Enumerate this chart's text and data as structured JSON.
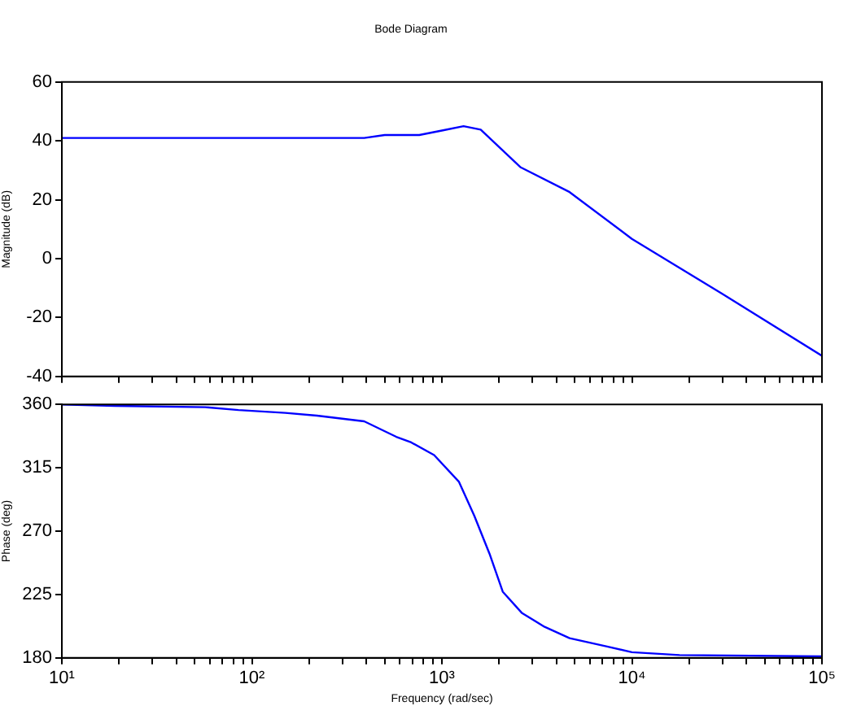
{
  "chart_data": [
    {
      "type": "line",
      "title": "Bode Diagram",
      "ylabel": "Magnitude (dB)",
      "log": "x",
      "grid": false,
      "legend": false,
      "marker": "none",
      "tick_labels": "y",
      "xlim": [
        10,
        100000
      ],
      "ylim": [
        -40,
        60
      ],
      "xticks": [
        10,
        {
          "value": 20,
          "label": null
        },
        {
          "value": 30,
          "label": null
        },
        {
          "value": 40,
          "label": null
        },
        {
          "value": 50,
          "label": null
        },
        {
          "value": 60,
          "label": null
        },
        {
          "value": 70,
          "label": null
        },
        {
          "value": 80,
          "label": null
        },
        {
          "value": 90,
          "label": null
        },
        100,
        {
          "value": 200,
          "label": null
        },
        {
          "value": 300,
          "label": null
        },
        {
          "value": 400,
          "label": null
        },
        {
          "value": 500,
          "label": null
        },
        {
          "value": 600,
          "label": null
        },
        {
          "value": 700,
          "label": null
        },
        {
          "value": 800,
          "label": null
        },
        {
          "value": 900,
          "label": null
        },
        1000,
        {
          "value": 2000,
          "label": null
        },
        {
          "value": 3000,
          "label": null
        },
        {
          "value": 4000,
          "label": null
        },
        {
          "value": 5000,
          "label": null
        },
        {
          "value": 6000,
          "label": null
        },
        {
          "value": 7000,
          "label": null
        },
        {
          "value": 8000,
          "label": null
        },
        {
          "value": 9000,
          "label": null
        },
        10000,
        {
          "value": 20000,
          "label": null
        },
        {
          "value": 30000,
          "label": null
        },
        {
          "value": 40000,
          "label": null
        },
        {
          "value": 50000,
          "label": null
        },
        {
          "value": 60000,
          "label": null
        },
        {
          "value": 70000,
          "label": null
        },
        {
          "value": 80000,
          "label": null
        },
        {
          "value": 90000,
          "label": null
        },
        100000
      ],
      "yticks": [
        -40,
        -20,
        0,
        20,
        40,
        60
      ],
      "series": [
        {
          "color": "#0000ff",
          "x": [
            10,
            100,
            390,
            500,
            760,
            1000,
            1300,
            1600,
            2600,
            4700,
            10000,
            30000,
            100000
          ],
          "values": [
            41,
            41,
            41,
            42,
            42,
            43.5,
            45,
            43.8,
            31,
            22.6,
            6.7,
            -12,
            -33
          ]
        }
      ]
    },
    {
      "type": "line",
      "ylabel": "Phase (deg)",
      "xlabel": "Frequency (rad/sec)",
      "log": "x",
      "grid": false,
      "legend": false,
      "marker": "none",
      "xlim": [
        10,
        100000
      ],
      "ylim": [
        180,
        360
      ],
      "xticks": [
        {
          "value": 10,
          "label": "10¹"
        },
        {
          "value": 20,
          "label": null
        },
        {
          "value": 30,
          "label": null
        },
        {
          "value": 40,
          "label": null
        },
        {
          "value": 50,
          "label": null
        },
        {
          "value": 60,
          "label": null
        },
        {
          "value": 70,
          "label": null
        },
        {
          "value": 80,
          "label": null
        },
        {
          "value": 90,
          "label": null
        },
        {
          "value": 100,
          "label": "10²"
        },
        {
          "value": 200,
          "label": null
        },
        {
          "value": 300,
          "label": null
        },
        {
          "value": 400,
          "label": null
        },
        {
          "value": 500,
          "label": null
        },
        {
          "value": 600,
          "label": null
        },
        {
          "value": 700,
          "label": null
        },
        {
          "value": 800,
          "label": null
        },
        {
          "value": 900,
          "label": null
        },
        {
          "value": 1000,
          "label": "10³"
        },
        {
          "value": 2000,
          "label": null
        },
        {
          "value": 3000,
          "label": null
        },
        {
          "value": 4000,
          "label": null
        },
        {
          "value": 5000,
          "label": null
        },
        {
          "value": 6000,
          "label": null
        },
        {
          "value": 7000,
          "label": null
        },
        {
          "value": 8000,
          "label": null
        },
        {
          "value": 9000,
          "label": null
        },
        {
          "value": 10000,
          "label": "10⁴"
        },
        {
          "value": 20000,
          "label": null
        },
        {
          "value": 30000,
          "label": null
        },
        {
          "value": 40000,
          "label": null
        },
        {
          "value": 50000,
          "label": null
        },
        {
          "value": 60000,
          "label": null
        },
        {
          "value": 70000,
          "label": null
        },
        {
          "value": 80000,
          "label": null
        },
        {
          "value": 90000,
          "label": null
        },
        {
          "value": 100000,
          "label": "10⁵"
        }
      ],
      "yticks": [
        180,
        225,
        270,
        315,
        360
      ],
      "series": [
        {
          "color": "#0000ff",
          "x": [
            10,
            19,
            57,
            85,
            150,
            220,
            390,
            575,
            690,
            910,
            1230,
            1480,
            1780,
            2090,
            2630,
            3470,
            4700,
            7400,
            10000,
            17800,
            100000
          ],
          "values": [
            360,
            359,
            358,
            356,
            354,
            352,
            348,
            337,
            333,
            324,
            305,
            281,
            254,
            227,
            212,
            202,
            194,
            188,
            184,
            182,
            181
          ]
        }
      ]
    }
  ]
}
